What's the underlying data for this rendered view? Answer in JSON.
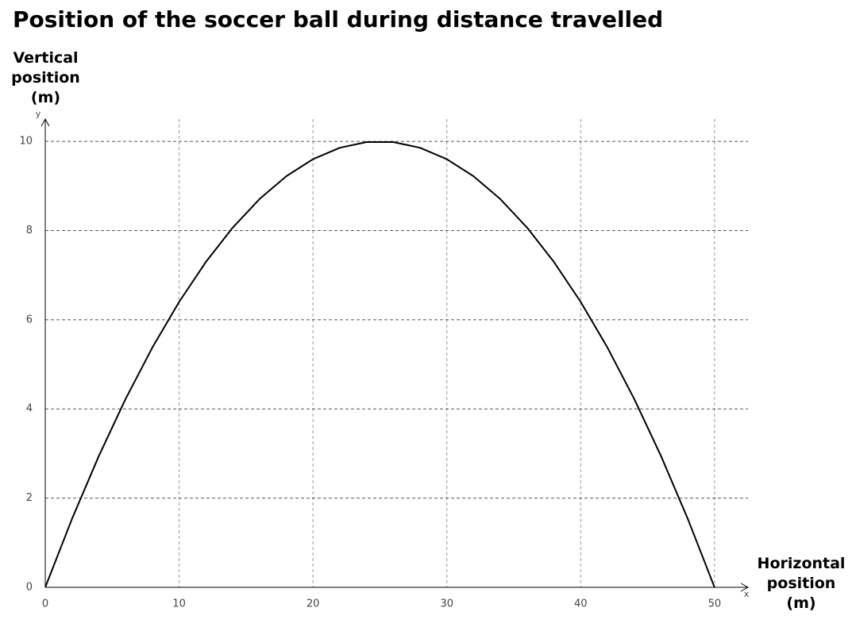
{
  "chart_data": {
    "type": "line",
    "title": "Position of the soccer ball during distance travelled",
    "y_label": "Vertical position (m)",
    "x_label": "Horizontal position (m)",
    "x_axis_symbol": "x",
    "y_axis_symbol": "y",
    "x": [
      0,
      2,
      4,
      6,
      8,
      10,
      12,
      14,
      16,
      18,
      20,
      22,
      24,
      26,
      28,
      30,
      32,
      34,
      36,
      38,
      40,
      42,
      44,
      46,
      48,
      50
    ],
    "values": [
      0,
      1.536,
      2.944,
      4.224,
      5.376,
      6.4,
      7.296,
      8.064,
      8.704,
      9.216,
      9.6,
      9.856,
      9.984,
      9.984,
      9.856,
      9.6,
      9.216,
      8.704,
      8.064,
      7.296,
      6.4,
      5.376,
      4.224,
      2.944,
      1.536,
      0
    ],
    "color": "#000000",
    "xlim": [
      0,
      52.5
    ],
    "ylim": [
      0,
      10.5
    ],
    "xticks": [
      0,
      10,
      20,
      30,
      40,
      50
    ],
    "yticks": [
      0,
      2,
      4,
      6,
      8,
      10
    ],
    "grid": true,
    "grid_style": "dashed"
  }
}
